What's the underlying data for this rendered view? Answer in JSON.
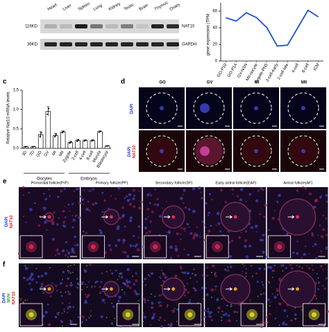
{
  "blot": {
    "lanes": [
      "Heart",
      "Liver",
      "Spleen",
      "Lung",
      "Kidney",
      "Testis",
      "Brain",
      "Thymus",
      "Ovary"
    ],
    "rows": [
      {
        "size": "116KD",
        "protein": "NAT10"
      },
      {
        "size": "36KD",
        "protein": "GAPDH"
      }
    ]
  },
  "chart_data": [
    {
      "type": "line",
      "y_label": "gene expression (TPM",
      "categories": [
        "GO-P10",
        "GO-P14",
        "GV-NSN",
        "MII-oocyte",
        "zygote-PN5",
        "2-cell-early",
        "2-cell-late",
        "4-cell",
        "8-cell",
        "ICM"
      ],
      "values": [
        52,
        48,
        58,
        52,
        40,
        18,
        19,
        40,
        61,
        53
      ],
      "color": "#1f4fd8",
      "ylim": [
        0,
        70
      ],
      "yticks": [
        0,
        20,
        40,
        60
      ]
    },
    {
      "type": "bar",
      "panel_label": "c",
      "y_label": "Relative Nat10 mRNA levels",
      "categories": [
        "3D",
        "7D",
        "GO",
        "GV",
        "MI",
        "MII",
        "Zygote",
        "2-cell",
        "4-cell",
        "8-cell",
        "Morula",
        "Blastocyst"
      ],
      "values": [
        0.04,
        0.04,
        0.35,
        0.95,
        0.33,
        0.42,
        0.15,
        0.2,
        0.2,
        0.2,
        0.43,
        0.06
      ],
      "errors": [
        0.01,
        0.01,
        0.08,
        0.12,
        0.05,
        0.03,
        0.03,
        0.03,
        0.02,
        0.02,
        0.02,
        0.01
      ],
      "groups": [
        "Oocytes",
        "Embryos"
      ],
      "color": "#ffffff",
      "ylim": [
        0,
        1.5
      ],
      "yticks": [
        {
          "value": 0,
          "label": "0.0"
        },
        {
          "value": 0.5,
          "label": "0.5"
        },
        {
          "value": 1,
          "label": "1.0"
        },
        {
          "value": 1.5,
          "label": "1.5"
        }
      ]
    }
  ],
  "panel_d": {
    "label": "d",
    "columns": [
      "GO",
      "GV",
      "MI",
      "MII"
    ],
    "rows": [
      [
        "DAPI"
      ],
      [
        "DAPI",
        "NAT10"
      ]
    ]
  },
  "panel_e": {
    "label": "e",
    "columns": [
      "Primordial follicle(PrF)",
      "Primary follicle(PF)",
      "Secondary follicle(SF)",
      "Early antral follicle(EAF)",
      "Antral follicle(AF)"
    ],
    "row_label": [
      "DAPI",
      "NAT10"
    ]
  },
  "panel_f": {
    "label": "f",
    "row_label": [
      "DAPI",
      "MVH",
      "NAT10"
    ]
  }
}
